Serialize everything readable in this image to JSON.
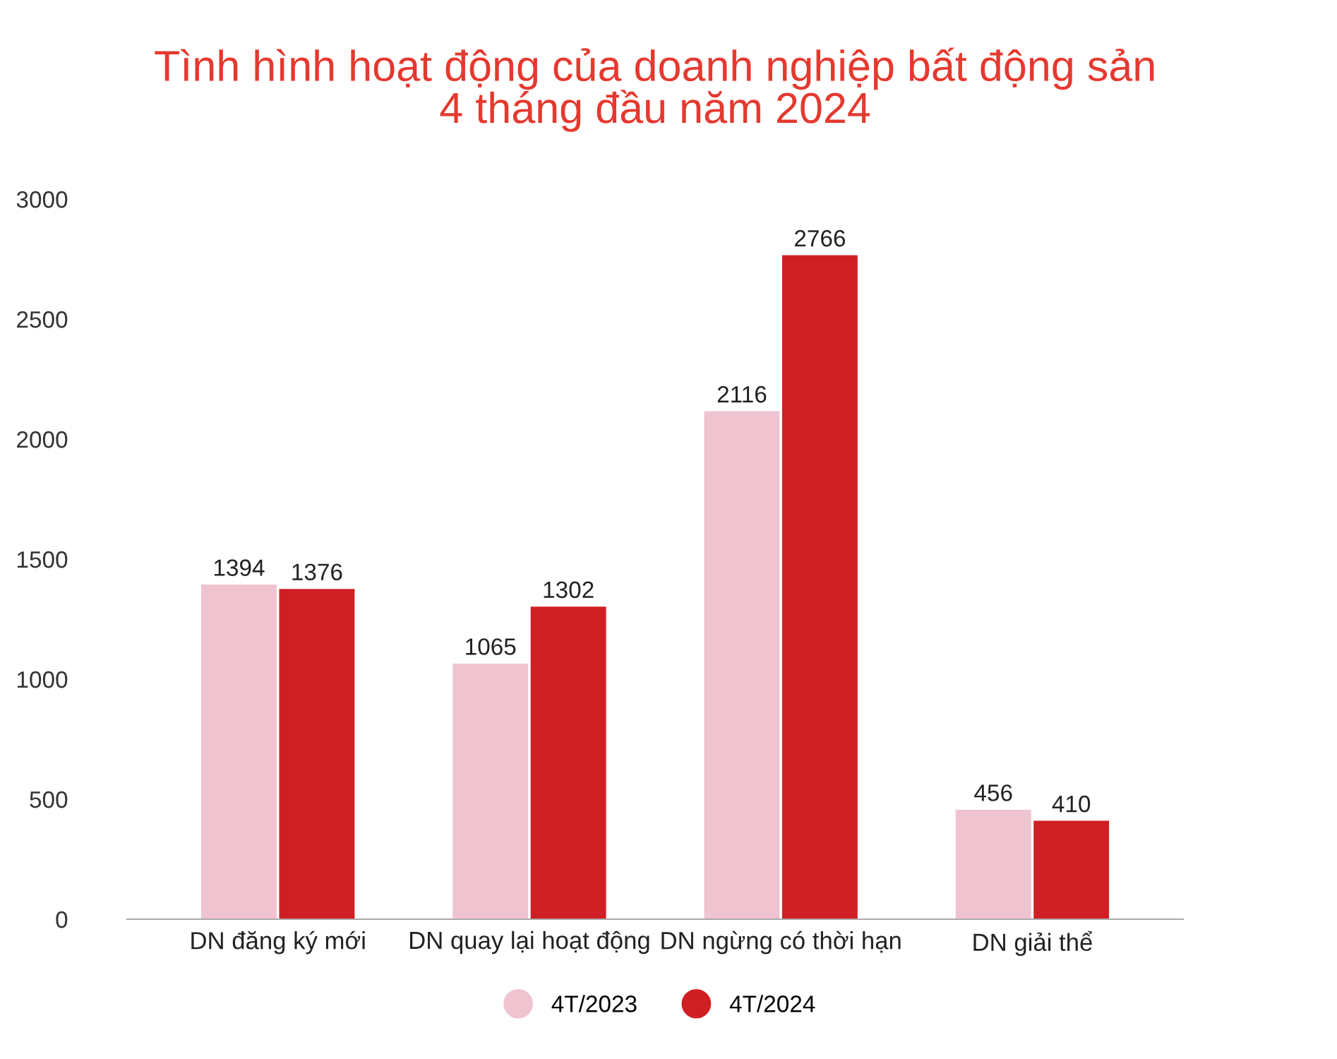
{
  "chart_data": {
    "type": "bar",
    "title": "Tình hình hoạt động của doanh nghiệp bất động sản\n4 tháng đầu năm 2024",
    "categories": [
      "DN đăng ký mới",
      "DN quay lại hoạt động",
      "DN ngừng có thời hạn",
      "DN giải thể"
    ],
    "series": [
      {
        "name": "4T/2023",
        "color": "#efc3cf",
        "values": [
          1394,
          1065,
          2116,
          456
        ]
      },
      {
        "name": "4T/2024",
        "color": "#d01f24",
        "values": [
          1376,
          1302,
          2766,
          410
        ]
      }
    ],
    "ylim": [
      0,
      3000
    ],
    "yticks": [
      0,
      500,
      1000,
      1500,
      2000,
      2500,
      3000
    ],
    "data_labels": true,
    "grid": false,
    "legend": "bottom"
  }
}
